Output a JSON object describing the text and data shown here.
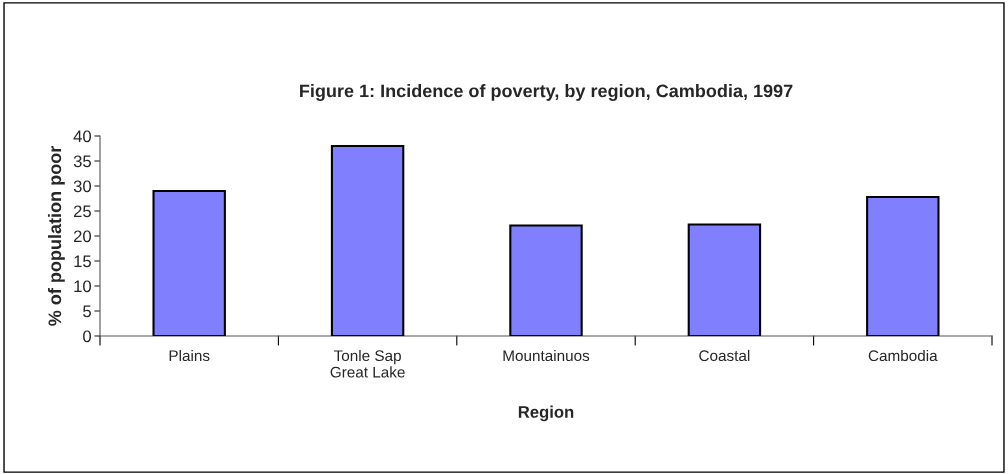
{
  "chart_data": {
    "type": "bar",
    "title": "Figure 1: Incidence of poverty, by region, Cambodia, 1997",
    "xlabel": "Region",
    "ylabel": "% of population poor",
    "categories": [
      "Plains",
      "Tonle Sap\nGreat Lake",
      "Mountainuos",
      "Coastal",
      "Cambodia"
    ],
    "values": [
      29,
      38,
      22.1,
      22.3,
      27.8
    ],
    "color": "#8080ff",
    "ylim": [
      0,
      40
    ],
    "yticks": [
      0,
      5,
      10,
      15,
      20,
      25,
      30,
      35,
      40
    ],
    "grid": false,
    "legend": false
  }
}
